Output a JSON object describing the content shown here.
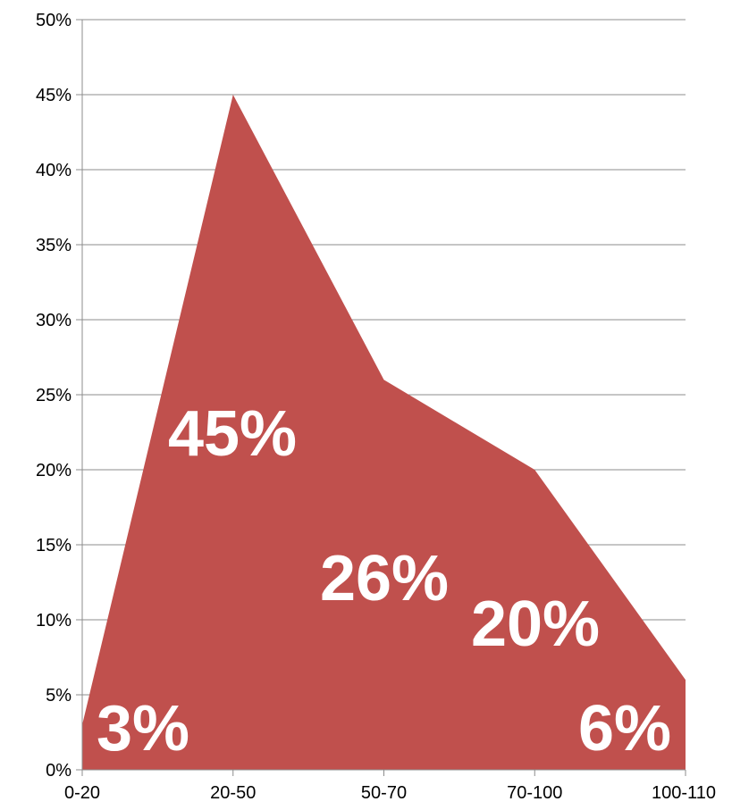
{
  "chart_data": {
    "type": "area",
    "categories": [
      "0-20",
      "20-50",
      "50-70",
      "70-100",
      "100-110"
    ],
    "series": [
      {
        "values": [
          3,
          45,
          26,
          20,
          6
        ],
        "color": "#c0504d"
      }
    ],
    "data_labels": [
      "3%",
      "45%",
      "26%",
      "20%",
      "6%"
    ],
    "y_ticks": [
      0,
      5,
      10,
      15,
      20,
      25,
      30,
      35,
      40,
      45,
      50
    ],
    "y_tick_labels": [
      "0%",
      "5%",
      "10%",
      "15%",
      "20%",
      "25%",
      "30%",
      "35%",
      "40%",
      "45%",
      "50%"
    ],
    "ylim": [
      0,
      50
    ],
    "grid": true,
    "legend": "none",
    "data_label_color": "#ffffff",
    "grid_color": "#8c8c8c"
  }
}
